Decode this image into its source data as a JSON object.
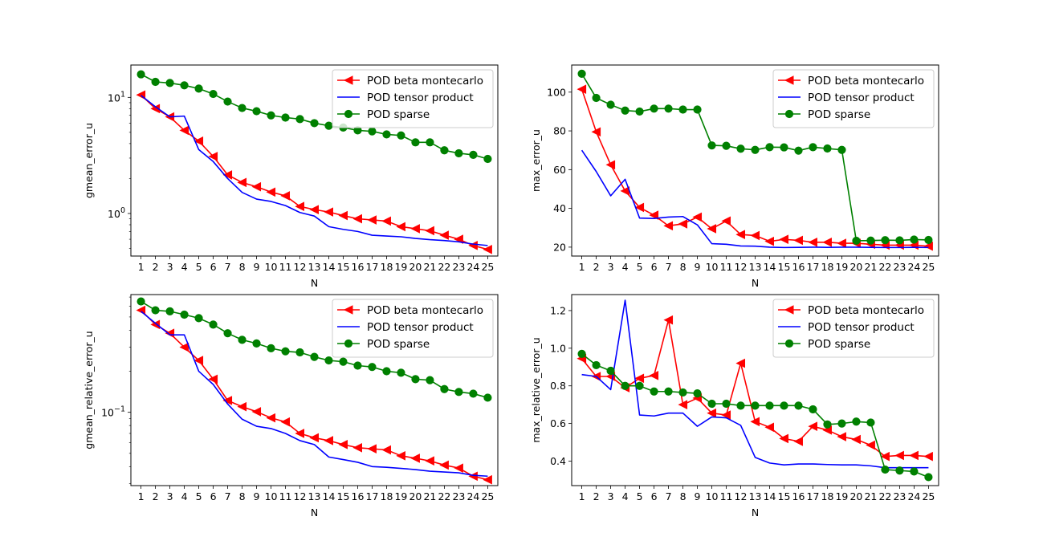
{
  "figure": {
    "background": "#ffffff"
  },
  "chart_data": [
    {
      "type": "line",
      "xlabel": "N",
      "ylabel": "gmean_error_u",
      "yscale": "log",
      "ylim": [
        0.43,
        19
      ],
      "yticks": [
        {
          "v": 1,
          "base": "10",
          "exp": "0"
        },
        {
          "v": 10,
          "base": "10",
          "exp": "1"
        }
      ],
      "x": [
        1,
        2,
        3,
        4,
        5,
        6,
        7,
        8,
        9,
        10,
        11,
        12,
        13,
        14,
        15,
        16,
        17,
        18,
        19,
        20,
        21,
        22,
        23,
        24,
        25
      ],
      "legend_position": "top-right",
      "series": [
        {
          "name": "POD beta montecarlo",
          "color": "#ff0000",
          "marker": "triangle-left",
          "values": [
            10.5,
            8.0,
            6.8,
            5.2,
            4.2,
            3.1,
            2.15,
            1.85,
            1.7,
            1.53,
            1.42,
            1.15,
            1.08,
            1.03,
            0.96,
            0.9,
            0.88,
            0.86,
            0.77,
            0.74,
            0.71,
            0.65,
            0.6,
            0.53,
            0.49
          ]
        },
        {
          "name": "POD tensor product",
          "color": "#0000ff",
          "marker": "none",
          "values": [
            10.4,
            8.3,
            6.8,
            6.9,
            3.55,
            2.8,
            2.0,
            1.52,
            1.33,
            1.27,
            1.17,
            1.02,
            0.95,
            0.77,
            0.73,
            0.7,
            0.65,
            0.64,
            0.63,
            0.61,
            0.595,
            0.585,
            0.57,
            0.545,
            0.53
          ]
        },
        {
          "name": "POD sparse",
          "color": "#008000",
          "marker": "circle",
          "values": [
            15.8,
            13.6,
            13.3,
            12.7,
            11.9,
            10.7,
            9.2,
            8.1,
            7.6,
            7.0,
            6.7,
            6.5,
            6.0,
            5.7,
            5.5,
            5.2,
            5.1,
            4.8,
            4.7,
            4.1,
            4.1,
            3.5,
            3.3,
            3.2,
            2.95
          ]
        }
      ]
    },
    {
      "type": "line",
      "xlabel": "N",
      "ylabel": "max_error_u",
      "yscale": "linear",
      "ylim": [
        15.4,
        114
      ],
      "yticks": [
        {
          "v": 20,
          "label": "20"
        },
        {
          "v": 40,
          "label": "40"
        },
        {
          "v": 60,
          "label": "60"
        },
        {
          "v": 80,
          "label": "80"
        },
        {
          "v": 100,
          "label": "100"
        }
      ],
      "x": [
        1,
        2,
        3,
        4,
        5,
        6,
        7,
        8,
        9,
        10,
        11,
        12,
        13,
        14,
        15,
        16,
        17,
        18,
        19,
        20,
        21,
        22,
        23,
        24,
        25
      ],
      "legend_position": "top-right",
      "series": [
        {
          "name": "POD beta montecarlo",
          "color": "#ff0000",
          "marker": "triangle-left",
          "values": [
            101.5,
            79.5,
            62.5,
            49.0,
            40.5,
            36.5,
            31.0,
            32.0,
            35.5,
            29.5,
            33.5,
            26.5,
            26.0,
            23.0,
            24.0,
            23.5,
            22.5,
            22.5,
            22.0,
            22.0,
            21.5,
            21.0,
            21.0,
            21.0,
            20.5
          ]
        },
        {
          "name": "POD tensor product",
          "color": "#0000ff",
          "marker": "none",
          "values": [
            70.0,
            59.0,
            46.5,
            55.0,
            35.0,
            34.8,
            35.5,
            35.8,
            31.5,
            21.8,
            21.5,
            20.6,
            20.5,
            20.0,
            19.8,
            19.9,
            20.0,
            19.9,
            20.0,
            20.0,
            19.9,
            19.8,
            19.8,
            19.9,
            19.8
          ]
        },
        {
          "name": "POD sparse",
          "color": "#008000",
          "marker": "circle",
          "values": [
            109.5,
            97.0,
            93.5,
            90.5,
            90.0,
            91.5,
            91.5,
            91.0,
            91.0,
            72.5,
            72.3,
            70.8,
            70.2,
            71.6,
            71.5,
            69.8,
            71.6,
            70.9,
            70.2,
            23.3,
            23.4,
            23.6,
            23.5,
            23.9,
            23.7
          ]
        }
      ]
    },
    {
      "type": "line",
      "xlabel": "N",
      "ylabel": "gmean_relative_error_u",
      "yscale": "log",
      "ylim": [
        0.029,
        0.73
      ],
      "yticks": [
        {
          "v": 0.1,
          "base": "10",
          "exp": "−1"
        }
      ],
      "x": [
        1,
        2,
        3,
        4,
        5,
        6,
        7,
        8,
        9,
        10,
        11,
        12,
        13,
        14,
        15,
        16,
        17,
        18,
        19,
        20,
        21,
        22,
        23,
        24,
        25
      ],
      "legend_position": "top-right",
      "series": [
        {
          "name": "POD beta montecarlo",
          "color": "#ff0000",
          "marker": "triangle-left",
          "values": [
            0.56,
            0.44,
            0.38,
            0.3,
            0.24,
            0.175,
            0.122,
            0.11,
            0.101,
            0.091,
            0.085,
            0.07,
            0.065,
            0.062,
            0.058,
            0.055,
            0.054,
            0.053,
            0.048,
            0.046,
            0.044,
            0.041,
            0.039,
            0.034,
            0.032
          ]
        },
        {
          "name": "POD tensor product",
          "color": "#0000ff",
          "marker": "none",
          "values": [
            0.55,
            0.45,
            0.37,
            0.37,
            0.2,
            0.16,
            0.115,
            0.089,
            0.079,
            0.076,
            0.07,
            0.062,
            0.058,
            0.047,
            0.045,
            0.043,
            0.04,
            0.0395,
            0.0388,
            0.038,
            0.037,
            0.0365,
            0.036,
            0.0345,
            0.034
          ]
        },
        {
          "name": "POD sparse",
          "color": "#008000",
          "marker": "circle",
          "values": [
            0.65,
            0.56,
            0.55,
            0.52,
            0.49,
            0.44,
            0.38,
            0.34,
            0.32,
            0.295,
            0.28,
            0.275,
            0.255,
            0.24,
            0.235,
            0.22,
            0.215,
            0.2,
            0.195,
            0.175,
            0.172,
            0.148,
            0.141,
            0.137,
            0.128
          ]
        }
      ]
    },
    {
      "type": "line",
      "xlabel": "N",
      "ylabel": "max_relative_error_u",
      "yscale": "linear",
      "ylim": [
        0.27,
        1.285
      ],
      "yticks": [
        {
          "v": 0.4,
          "label": "0.4"
        },
        {
          "v": 0.6,
          "label": "0.6"
        },
        {
          "v": 0.8,
          "label": "0.8"
        },
        {
          "v": 1.0,
          "label": "1.0"
        },
        {
          "v": 1.2,
          "label": "1.2"
        }
      ],
      "x": [
        1,
        2,
        3,
        4,
        5,
        6,
        7,
        8,
        9,
        10,
        11,
        12,
        13,
        14,
        15,
        16,
        17,
        18,
        19,
        20,
        21,
        22,
        23,
        24,
        25
      ],
      "legend_position": "top-right",
      "series": [
        {
          "name": "POD beta montecarlo",
          "color": "#ff0000",
          "marker": "triangle-left",
          "values": [
            0.945,
            0.85,
            0.85,
            0.79,
            0.84,
            0.855,
            1.15,
            0.7,
            0.735,
            0.655,
            0.645,
            0.92,
            0.61,
            0.58,
            0.52,
            0.505,
            0.585,
            0.565,
            0.53,
            0.515,
            0.485,
            0.425,
            0.43,
            0.43,
            0.425
          ]
        },
        {
          "name": "POD tensor product",
          "color": "#0000ff",
          "marker": "none",
          "values": [
            0.86,
            0.85,
            0.78,
            1.255,
            0.645,
            0.64,
            0.655,
            0.655,
            0.585,
            0.635,
            0.63,
            0.59,
            0.42,
            0.39,
            0.38,
            0.385,
            0.385,
            0.382,
            0.38,
            0.38,
            0.375,
            0.365,
            0.365,
            0.365,
            0.365
          ]
        },
        {
          "name": "POD sparse",
          "color": "#008000",
          "marker": "circle",
          "values": [
            0.97,
            0.91,
            0.88,
            0.8,
            0.8,
            0.77,
            0.77,
            0.765,
            0.76,
            0.705,
            0.705,
            0.695,
            0.695,
            0.695,
            0.695,
            0.695,
            0.675,
            0.595,
            0.6,
            0.61,
            0.605,
            0.355,
            0.35,
            0.345,
            0.315
          ]
        }
      ]
    }
  ]
}
